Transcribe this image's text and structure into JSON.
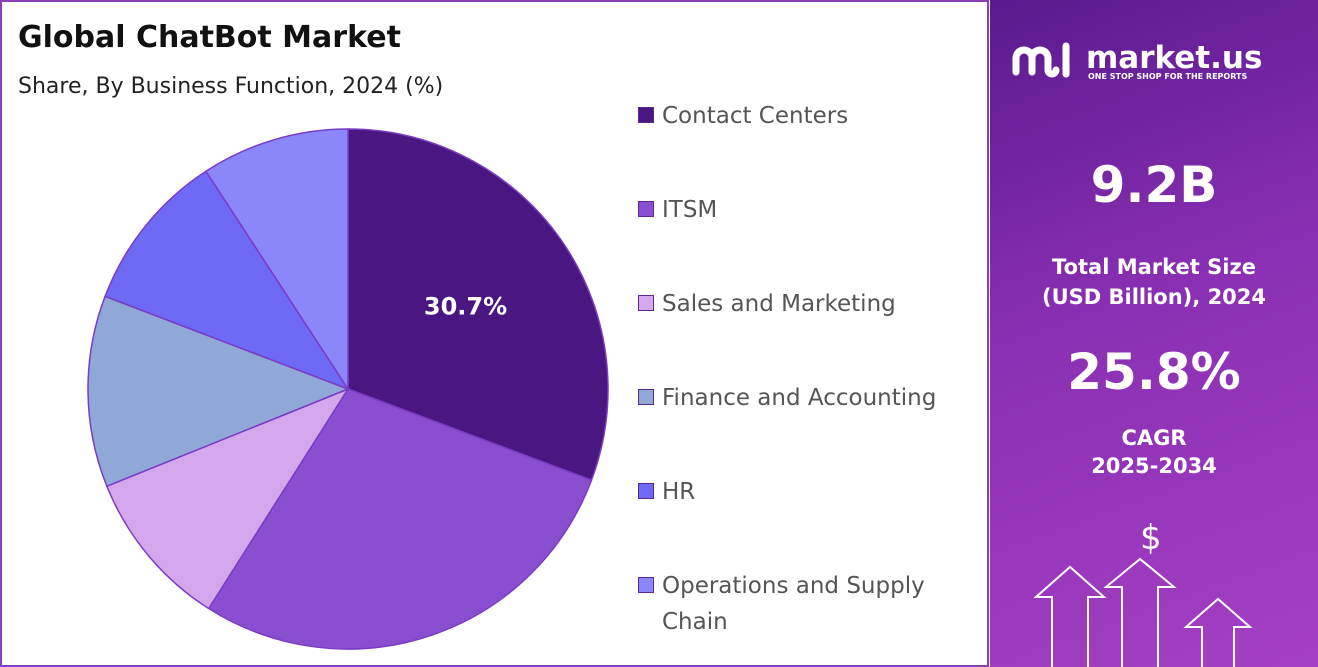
{
  "chart_data": {
    "type": "pie",
    "title": "Global ChatBot Market",
    "subtitle": "Share, By Business Function, 2024 (%)",
    "categories": [
      "Contact Centers",
      "ITSM",
      "Sales and Marketing",
      "Finance and Accounting",
      "HR",
      "Operations and Supply Chain"
    ],
    "values": [
      30.7,
      28.3,
      9.9,
      11.9,
      10.0,
      9.2
    ],
    "value_labels": [
      "30.7%",
      null,
      null,
      null,
      null,
      null
    ],
    "colors": [
      "#4a1782",
      "#8a4fd0",
      "#d4a6ec",
      "#8fa8d8",
      "#6e6af5",
      "#8b87fa"
    ],
    "legend": "right"
  },
  "sidebar": {
    "brand": "market.us",
    "tagline": "ONE STOP SHOP FOR THE REPORTS",
    "market_size": "9.2B",
    "market_size_label": [
      "Total Market Size",
      "(USD Billion), 2024"
    ],
    "cagr": "25.8%",
    "cagr_label": [
      "CAGR",
      "2025-2034"
    ],
    "icon": "$"
  }
}
